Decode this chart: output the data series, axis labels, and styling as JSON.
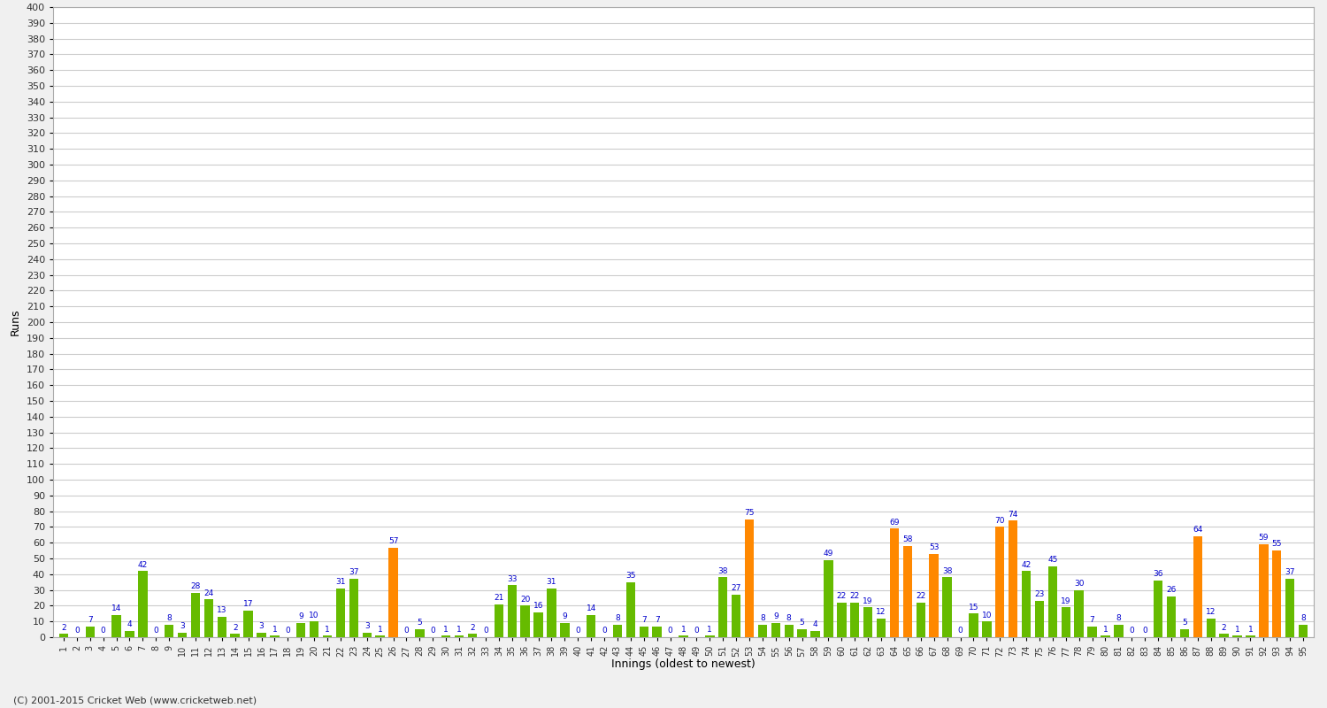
{
  "scores": [
    2,
    0,
    7,
    0,
    14,
    4,
    42,
    0,
    8,
    3,
    28,
    24,
    13,
    2,
    17,
    3,
    1,
    0,
    9,
    10,
    1,
    31,
    37,
    3,
    1,
    57,
    0,
    5,
    0,
    1,
    1,
    2,
    0,
    21,
    33,
    20,
    16,
    31,
    9,
    0,
    14,
    0,
    8,
    35,
    7,
    7,
    0,
    1,
    0,
    1,
    38,
    27,
    75,
    8,
    9,
    8,
    5,
    4,
    49,
    22,
    22,
    19,
    12,
    69,
    58,
    22,
    53,
    38,
    0,
    15,
    10,
    70,
    74,
    42,
    23,
    45,
    19,
    30,
    7,
    1,
    8,
    0,
    0,
    36,
    26,
    5,
    64,
    12,
    2,
    1,
    1,
    59,
    55,
    37,
    8
  ],
  "innings_labels": [
    "1",
    "2",
    "3",
    "4",
    "5",
    "6",
    "7",
    "8",
    "9",
    "10",
    "11",
    "12",
    "13",
    "14",
    "15",
    "16",
    "17",
    "18",
    "19",
    "20",
    "21",
    "22",
    "23",
    "24",
    "25",
    "26",
    "27",
    "28",
    "29",
    "30",
    "31",
    "32",
    "33",
    "34",
    "35",
    "36",
    "37",
    "38",
    "39",
    "40",
    "41",
    "42",
    "43",
    "44",
    "45",
    "46",
    "47",
    "48",
    "49",
    "50",
    "51",
    "52",
    "53",
    "54",
    "55",
    "56",
    "57",
    "58",
    "59",
    "60",
    "61",
    "62",
    "63",
    "64",
    "65",
    "66",
    "67",
    "68",
    "69",
    "70",
    "71",
    "72",
    "73",
    "74",
    "75",
    "76",
    "77",
    "78",
    "79",
    "80",
    "81",
    "82",
    "83",
    "84",
    "85",
    "86",
    "87",
    "88",
    "89",
    "90",
    "91",
    "92",
    "93",
    "94",
    "95"
  ],
  "fifty_threshold": 50,
  "bar_color_normal": "#66bb00",
  "bar_color_fifty": "#ff8800",
  "ylabel": "Runs",
  "xlabel": "Innings (oldest to newest)",
  "ylim": [
    0,
    400
  ],
  "ytick_step": 10,
  "footer": "(C) 2001-2015 Cricket Web (www.cricketweb.net)",
  "background_color": "#f0f0f0",
  "plot_bg_color": "#ffffff",
  "grid_color": "#cccccc",
  "label_color": "#0000cc",
  "axis_color": "#000000"
}
